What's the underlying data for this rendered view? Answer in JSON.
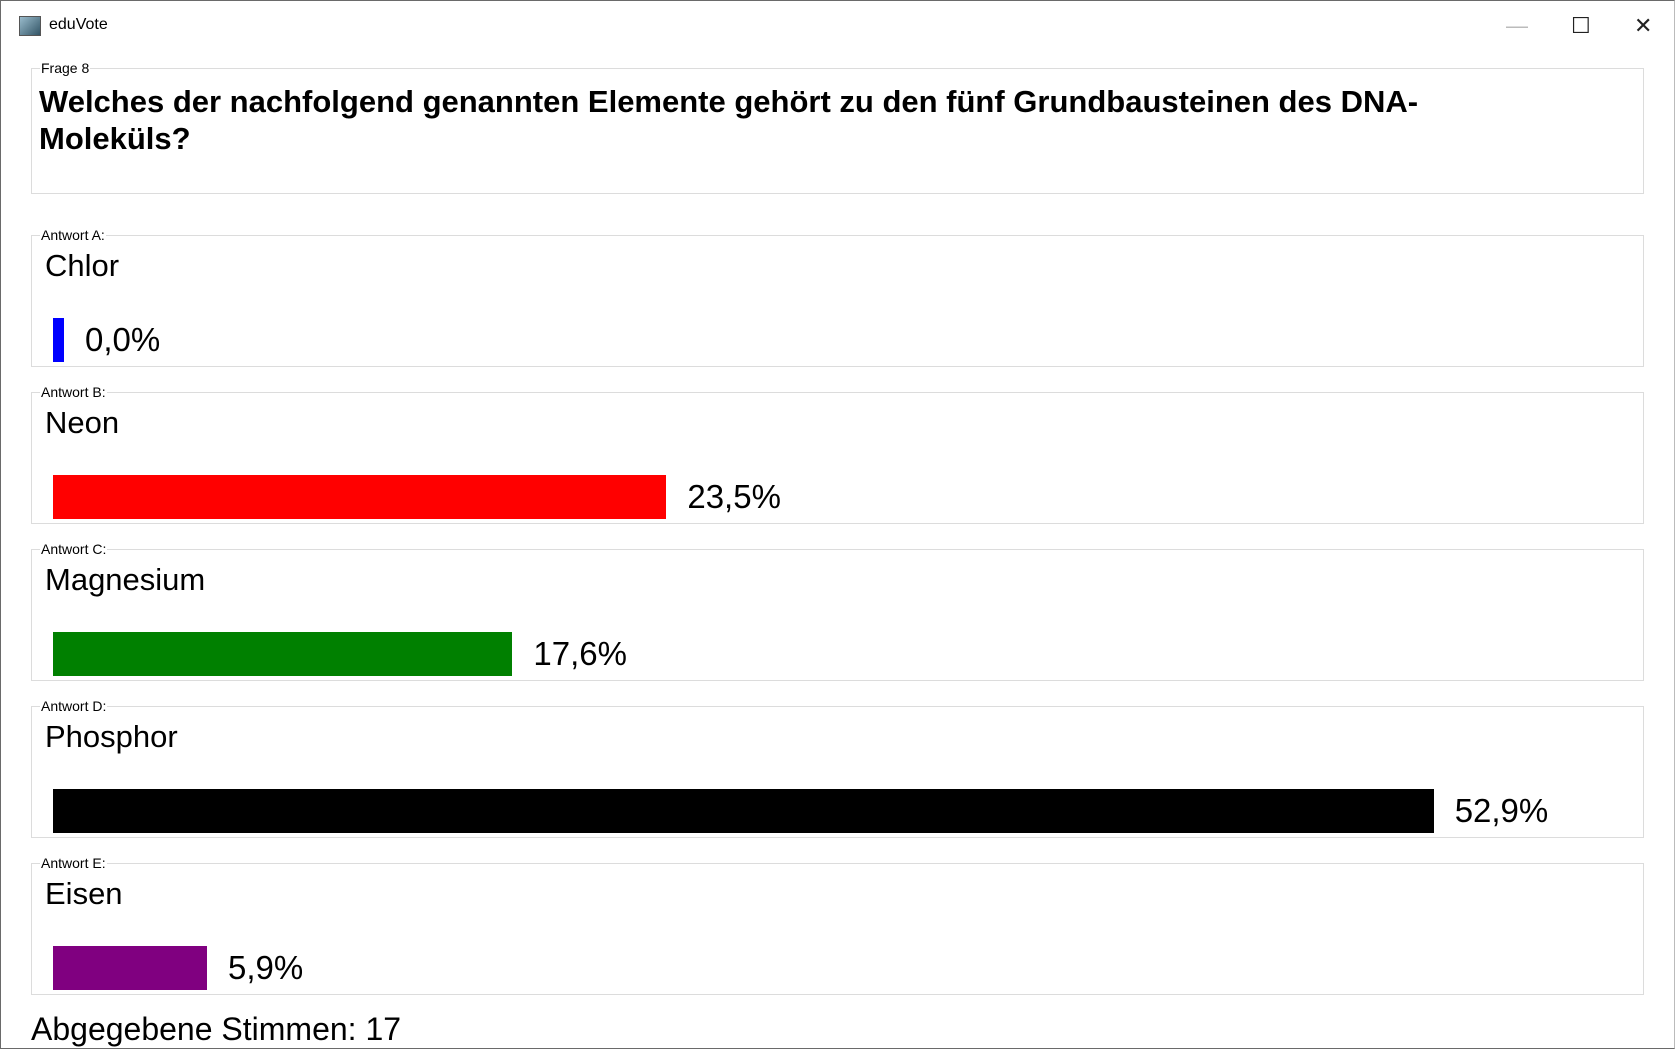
{
  "window": {
    "title": "eduVote"
  },
  "question": {
    "label": "Frage 8",
    "text": "Welches der nachfolgend genannten Elemente gehört zu den fünf Grundbausteinen des DNA-Moleküls?"
  },
  "answers": [
    {
      "label": "Antwort A:",
      "text": "Chlor",
      "value": 0,
      "value_label": "0,0%",
      "color": "#0000ff"
    },
    {
      "label": "Antwort B:",
      "text": "Neon",
      "value": 23.5,
      "value_label": "23,5%",
      "color": "#ff0000"
    },
    {
      "label": "Antwort C:",
      "text": "Magnesium",
      "value": 17.6,
      "value_label": "17,6%",
      "color": "#008000"
    },
    {
      "label": "Antwort D:",
      "text": "Phosphor",
      "value": 52.9,
      "value_label": "52,9%",
      "color": "#000000"
    },
    {
      "label": "Antwort E:",
      "text": "Eisen",
      "value": 5.9,
      "value_label": "5,9%",
      "color": "#800080"
    }
  ],
  "footer": {
    "votes": "Abgegebene Stimmen: 17"
  }
}
